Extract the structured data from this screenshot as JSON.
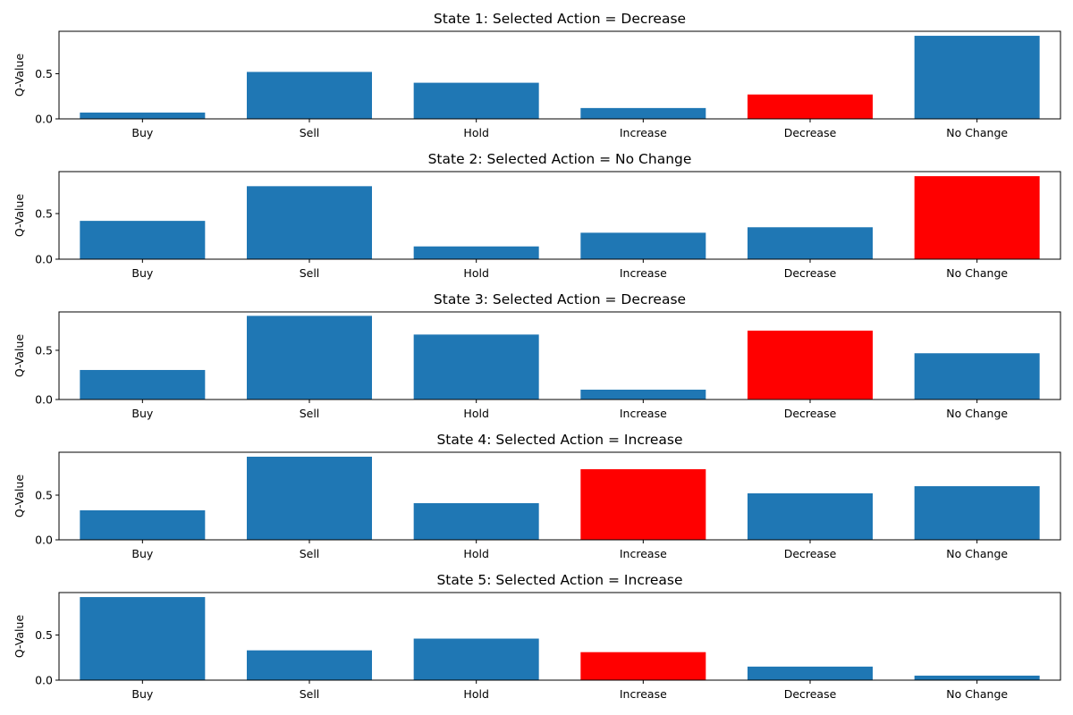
{
  "chart_data": [
    {
      "type": "bar",
      "title": "State 1: Selected Action = Decrease",
      "ylabel": "Q-Value",
      "categories": [
        "Buy",
        "Sell",
        "Hold",
        "Increase",
        "Decrease",
        "No Change"
      ],
      "values": [
        0.07,
        0.52,
        0.4,
        0.12,
        0.27,
        0.92
      ],
      "selected": "Decrease",
      "yticks": [
        "0.0",
        "0.5"
      ],
      "ylim": [
        0,
        0.97
      ]
    },
    {
      "type": "bar",
      "title": "State 2: Selected Action = No Change",
      "ylabel": "Q-Value",
      "categories": [
        "Buy",
        "Sell",
        "Hold",
        "Increase",
        "Decrease",
        "No Change"
      ],
      "values": [
        0.42,
        0.8,
        0.14,
        0.29,
        0.35,
        0.91
      ],
      "selected": "No Change",
      "yticks": [
        "0.0",
        "0.5"
      ],
      "ylim": [
        0,
        0.96
      ]
    },
    {
      "type": "bar",
      "title": "State 3: Selected Action = Decrease",
      "ylabel": "Q-Value",
      "categories": [
        "Buy",
        "Sell",
        "Hold",
        "Increase",
        "Decrease",
        "No Change"
      ],
      "values": [
        0.3,
        0.85,
        0.66,
        0.1,
        0.7,
        0.47
      ],
      "selected": "Decrease",
      "yticks": [
        "0.0",
        "0.5"
      ],
      "ylim": [
        0,
        0.89
      ]
    },
    {
      "type": "bar",
      "title": "State 4: Selected Action = Increase",
      "ylabel": "Q-Value",
      "categories": [
        "Buy",
        "Sell",
        "Hold",
        "Increase",
        "Decrease",
        "No Change"
      ],
      "values": [
        0.33,
        0.93,
        0.41,
        0.79,
        0.52,
        0.6
      ],
      "selected": "Increase",
      "yticks": [
        "0.0",
        "0.5"
      ],
      "ylim": [
        0,
        0.98
      ]
    },
    {
      "type": "bar",
      "title": "State 5: Selected Action = Increase",
      "ylabel": "Q-Value",
      "categories": [
        "Buy",
        "Sell",
        "Hold",
        "Increase",
        "Decrease",
        "No Change"
      ],
      "values": [
        0.92,
        0.33,
        0.46,
        0.31,
        0.15,
        0.05
      ],
      "selected": "Increase",
      "yticks": [
        "0.0",
        "0.5"
      ],
      "ylim": [
        0,
        0.97
      ]
    }
  ],
  "colors": {
    "default_bar": "#1f77b4",
    "selected_bar": "#ff0000"
  }
}
